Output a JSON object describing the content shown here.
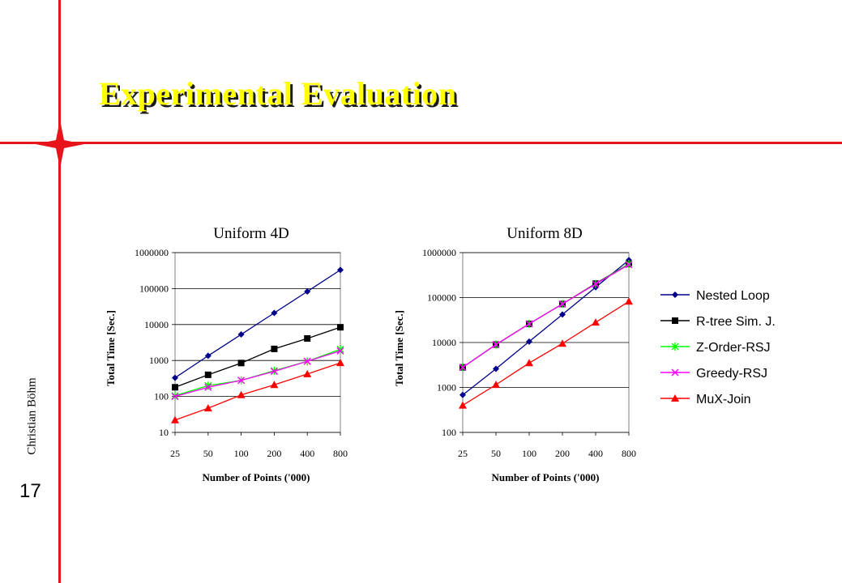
{
  "slide": {
    "title": "Experimental Evaluation",
    "author": "Christian Böhm",
    "page_number": "17",
    "colors": {
      "accent": "#e8141c",
      "title": "#ffff00",
      "title_shadow": "#1a1a1a"
    },
    "icons": {
      "star": "red-four-point-star-icon"
    }
  },
  "legend": {
    "entries": [
      {
        "name": "Nested Loop",
        "color": "#00008b",
        "marker": "diamond"
      },
      {
        "name": "R-tree Sim. J.",
        "color": "#000000",
        "marker": "square"
      },
      {
        "name": "Z-Order-RSJ",
        "color": "#00ff00",
        "marker": "asterisk"
      },
      {
        "name": "Greedy-RSJ",
        "color": "#ff00ff",
        "marker": "x"
      },
      {
        "name": "MuX-Join",
        "color": "#ff0000",
        "marker": "triangle"
      }
    ]
  },
  "chart_data": [
    {
      "type": "line",
      "title": "Uniform 4D",
      "xlabel": "Number of Points ('000)",
      "ylabel": "Total Time [Sec.]",
      "yscale": "log",
      "categories": [
        "25",
        "50",
        "100",
        "200",
        "400",
        "800"
      ],
      "yticks": [
        "10",
        "100",
        "1000",
        "10000",
        "100000",
        "1000000"
      ],
      "ylim": [
        10,
        1000000
      ],
      "grid": "horizontal",
      "series": [
        {
          "name": "Nested Loop",
          "values": [
            330,
            1350,
            5300,
            21000,
            83000,
            330000
          ]
        },
        {
          "name": "R-tree Sim. J.",
          "values": [
            180,
            400,
            850,
            2100,
            4100,
            8400
          ]
        },
        {
          "name": "Z-Order-RSJ",
          "values": [
            105,
            200,
            280,
            520,
            950,
            2050
          ]
        },
        {
          "name": "Greedy-RSJ",
          "values": [
            100,
            180,
            280,
            500,
            950,
            1850
          ]
        },
        {
          "name": "MuX-Join",
          "values": [
            22,
            47,
            110,
            210,
            420,
            860
          ]
        }
      ]
    },
    {
      "type": "line",
      "title": "Uniform 8D",
      "xlabel": "Number of Points ('000)",
      "ylabel": "Total Time [Sec.]",
      "yscale": "log",
      "categories": [
        "25",
        "50",
        "100",
        "200",
        "400",
        "800"
      ],
      "yticks": [
        "100",
        "1000",
        "10000",
        "100000",
        "1000000"
      ],
      "ylim": [
        100,
        1000000
      ],
      "grid": "horizontal",
      "legend": "right",
      "series": [
        {
          "name": "Nested Loop",
          "values": [
            680,
            2600,
            10500,
            42000,
            170000,
            680000
          ]
        },
        {
          "name": "R-tree Sim. J.",
          "values": [
            2800,
            9000,
            26000,
            72000,
            205000,
            560000
          ]
        },
        {
          "name": "Z-Order-RSJ",
          "values": [
            2800,
            9000,
            26000,
            72000,
            200000,
            560000
          ]
        },
        {
          "name": "Greedy-RSJ",
          "values": [
            2800,
            9000,
            26000,
            72000,
            200000,
            540000
          ]
        },
        {
          "name": "MuX-Join",
          "values": [
            400,
            1150,
            3500,
            9500,
            28000,
            82000
          ]
        }
      ]
    }
  ]
}
